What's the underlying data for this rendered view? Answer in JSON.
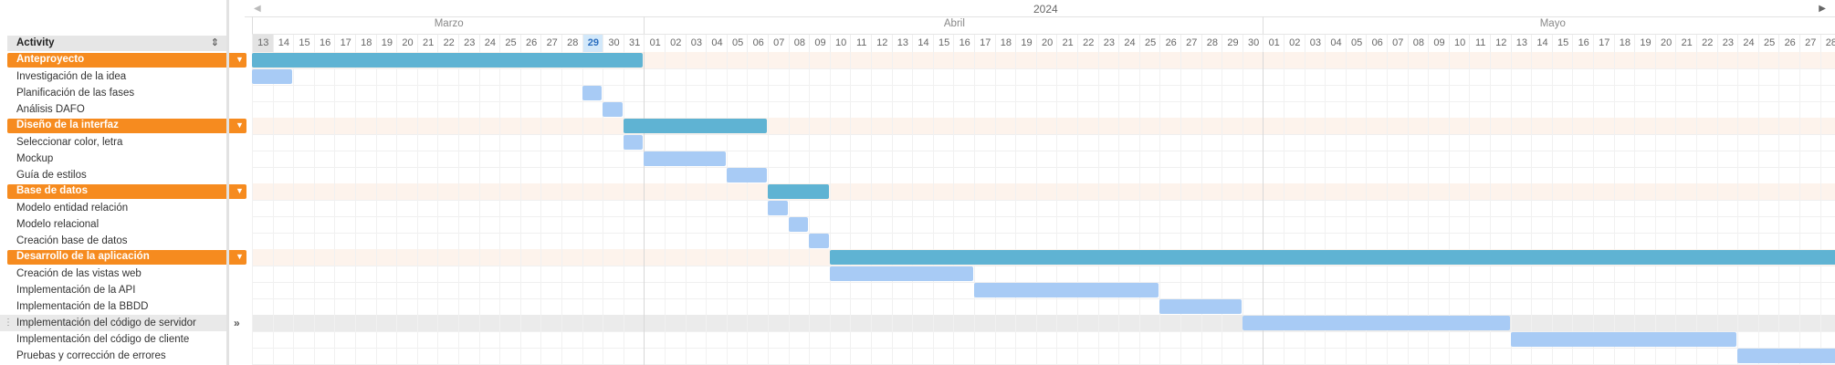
{
  "header": {
    "activity_label": "Activity",
    "year": "2024",
    "months": [
      "Marzo",
      "Abril",
      "Mayo"
    ],
    "first_visible_day": 13,
    "today_marker_day": 29
  },
  "colors": {
    "group_pill": "#f68b1f",
    "group_bar": "#5fb3d3",
    "task_bar": "#a8cbf5",
    "group_row_bg": "#fdf3ec",
    "today_bg": "#d2e8fa"
  },
  "icons": {
    "sort": "sort-arrows-icon",
    "group_toggle": "caret-down-icon",
    "drag": "drag-handle-icon",
    "expand": "double-chevron-right-icon",
    "nav_prev": "triangle-left-icon",
    "nav_next": "triangle-right-icon"
  },
  "timeline": {
    "days": [
      "13",
      "14",
      "15",
      "16",
      "17",
      "18",
      "19",
      "20",
      "21",
      "22",
      "23",
      "24",
      "25",
      "26",
      "27",
      "28",
      "29",
      "30",
      "31",
      "01",
      "02",
      "03",
      "04",
      "05",
      "06",
      "07",
      "08",
      "09",
      "10",
      "11",
      "12",
      "13",
      "14",
      "15",
      "16",
      "17",
      "18",
      "19",
      "20",
      "21",
      "22",
      "23",
      "24",
      "25",
      "26",
      "27",
      "28",
      "29",
      "30",
      "01",
      "02",
      "03",
      "04",
      "05",
      "06",
      "07",
      "08",
      "09",
      "10",
      "11",
      "12",
      "13",
      "14",
      "15",
      "16",
      "17",
      "18",
      "19",
      "20",
      "21",
      "22",
      "23",
      "24",
      "25",
      "26",
      "27",
      "28"
    ]
  },
  "rows": [
    {
      "name": "Anteproyecto",
      "group": true,
      "bar_start": "2024-03-13",
      "bar_end": "2024-03-31"
    },
    {
      "name": "Investigación de la idea",
      "group": false,
      "bar_start": "2024-03-13",
      "bar_end": "2024-03-14"
    },
    {
      "name": "Planificación de las fases",
      "group": false,
      "bar_start": "2024-03-29",
      "bar_end": "2024-03-29"
    },
    {
      "name": "Análisis DAFO",
      "group": false,
      "bar_start": "2024-03-30",
      "bar_end": "2024-03-30"
    },
    {
      "name": "Diseño de la interfaz",
      "group": true,
      "bar_start": "2024-03-31",
      "bar_end": "2024-04-06"
    },
    {
      "name": "Seleccionar color, letra",
      "group": false,
      "bar_start": "2024-03-31",
      "bar_end": "2024-03-31"
    },
    {
      "name": "Mockup",
      "group": false,
      "bar_start": "2024-04-01",
      "bar_end": "2024-04-04"
    },
    {
      "name": "Guía de estilos",
      "group": false,
      "bar_start": "2024-04-05",
      "bar_end": "2024-04-06"
    },
    {
      "name": "Base de datos",
      "group": true,
      "bar_start": "2024-04-07",
      "bar_end": "2024-04-09"
    },
    {
      "name": "Modelo entidad relación",
      "group": false,
      "bar_start": "2024-04-07",
      "bar_end": "2024-04-07"
    },
    {
      "name": "Modelo relacional",
      "group": false,
      "bar_start": "2024-04-08",
      "bar_end": "2024-04-08"
    },
    {
      "name": "Creación base de datos",
      "group": false,
      "bar_start": "2024-04-09",
      "bar_end": "2024-04-09"
    },
    {
      "name": "Desarrollo de la aplicación",
      "group": true,
      "bar_start": "2024-04-10",
      "bar_end": "2024-05-28"
    },
    {
      "name": "Creación de las vistas web",
      "group": false,
      "bar_start": "2024-04-10",
      "bar_end": "2024-04-16"
    },
    {
      "name": "Implementación de la API",
      "group": false,
      "bar_start": "2024-04-17",
      "bar_end": "2024-04-25"
    },
    {
      "name": "Implementación de la BBDD",
      "group": false,
      "bar_start": "2024-04-26",
      "bar_end": "2024-04-29"
    },
    {
      "name": "Implementación del código de servidor",
      "group": false,
      "selected": true,
      "bar_start": "2024-04-30",
      "bar_end": "2024-05-12"
    },
    {
      "name": "Implementación del código de cliente",
      "group": false,
      "bar_start": "2024-05-13",
      "bar_end": "2024-05-23"
    },
    {
      "name": "Pruebas y corrección de errores",
      "group": false,
      "bar_start": "2024-05-24",
      "bar_end": "2024-05-28"
    }
  ]
}
